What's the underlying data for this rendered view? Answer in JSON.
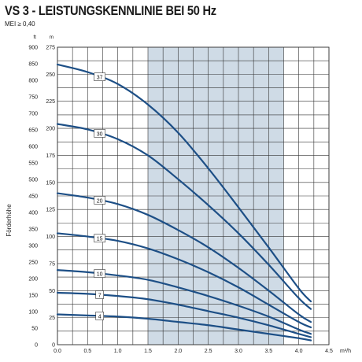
{
  "title": "VS 3 - LEISTUNGSKENNLINIE BEI 50 Hz",
  "subtitle": "MEI ≥ 0,40",
  "colors": {
    "curve": "#1d4f86",
    "band": "#cfdbe6",
    "grid": "#333333",
    "label_bg": "#ffffff"
  },
  "chart_data": {
    "type": "line",
    "title": "VS 3 - LEISTUNGSKENNLINIE BEI 50 Hz",
    "subtitle": "MEI ≥ 0,40",
    "xlabel": "m³/h",
    "ylabel": "Förderhöhe",
    "y_unit_ft": "ft",
    "y_unit_m": "m",
    "xlim": [
      0,
      4.5
    ],
    "ylim_m": [
      0,
      275
    ],
    "ylim_ft": [
      0,
      900
    ],
    "x_ticks": [
      "0.0",
      "0.5",
      "1.0",
      "1.5",
      "2.0",
      "2.5",
      "3.0",
      "3.5",
      "4.0",
      "4.5"
    ],
    "y_ticks_m": [
      "0",
      "25",
      "50",
      "75",
      "100",
      "125",
      "150",
      "175",
      "200",
      "225",
      "250",
      "275"
    ],
    "y_ticks_ft": [
      "0",
      "50",
      "100",
      "150",
      "200",
      "250",
      "300",
      "350",
      "400",
      "450",
      "500",
      "550",
      "600",
      "650",
      "700",
      "750",
      "800",
      "850",
      "900"
    ],
    "recommended_range": [
      1.5,
      3.75
    ],
    "grid": true,
    "series": [
      {
        "name": "37",
        "label_x": 0.7,
        "x": [
          0,
          0.5,
          1.0,
          1.5,
          2.0,
          2.5,
          3.0,
          3.5,
          4.0,
          4.2
        ],
        "y": [
          259,
          252,
          241,
          222,
          196,
          163,
          127,
          90,
          52,
          40
        ]
      },
      {
        "name": "30",
        "label_x": 0.7,
        "x": [
          0,
          0.5,
          1.0,
          1.5,
          2.0,
          2.5,
          3.0,
          3.5,
          4.0,
          4.2
        ],
        "y": [
          204,
          199,
          190,
          175,
          153,
          129,
          103,
          74,
          43,
          33
        ]
      },
      {
        "name": "20",
        "label_x": 0.7,
        "x": [
          0,
          0.5,
          1.0,
          1.5,
          2.0,
          2.5,
          3.0,
          3.5,
          4.0,
          4.2
        ],
        "y": [
          140,
          136,
          130,
          120,
          106,
          90,
          71,
          50,
          28,
          21
        ]
      },
      {
        "name": "15",
        "label_x": 0.7,
        "x": [
          0,
          0.5,
          1.0,
          1.5,
          2.0,
          2.5,
          3.0,
          3.5,
          4.0,
          4.2
        ],
        "y": [
          103,
          100,
          96,
          89,
          79,
          67,
          53,
          37,
          21,
          16
        ]
      },
      {
        "name": "10",
        "label_x": 0.7,
        "x": [
          0,
          0.5,
          1.0,
          1.5,
          2.0,
          2.5,
          3.0,
          3.5,
          4.0,
          4.2
        ],
        "y": [
          69,
          67,
          64,
          60,
          53,
          45,
          36,
          26,
          14,
          10
        ]
      },
      {
        "name": "7",
        "label_x": 0.7,
        "x": [
          0,
          0.5,
          1.0,
          1.5,
          2.0,
          2.5,
          3.0,
          3.5,
          4.0,
          4.2
        ],
        "y": [
          48,
          47,
          45,
          42,
          37,
          31,
          25,
          18,
          10,
          7
        ]
      },
      {
        "name": "4",
        "label_x": 0.7,
        "x": [
          0,
          0.5,
          1.0,
          1.5,
          2.0,
          2.5,
          3.0,
          3.5,
          4.0,
          4.2
        ],
        "y": [
          28,
          27,
          26,
          24,
          21,
          18,
          14,
          10,
          6,
          4
        ]
      }
    ]
  }
}
